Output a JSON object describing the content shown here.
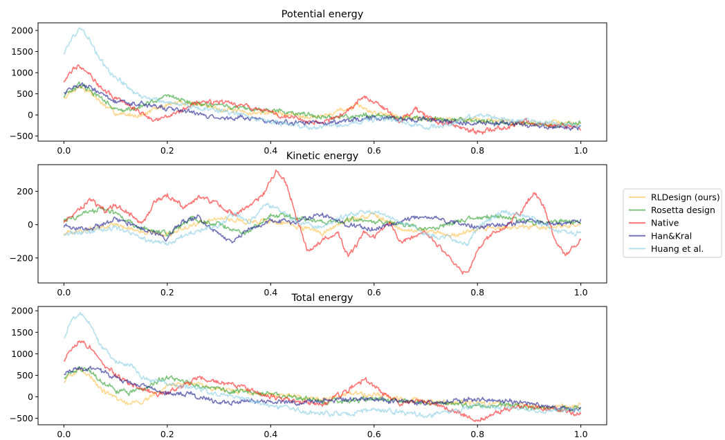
{
  "chart_data": [
    {
      "type": "line",
      "title": "Potential energy",
      "xlabel": "",
      "ylabel": "",
      "xlim": [
        -0.05,
        1.05
      ],
      "ylim": [
        -620,
        2180
      ],
      "xticks": [
        0.0,
        0.2,
        0.4,
        0.6,
        0.8,
        1.0
      ],
      "xtick_labels": [
        "0.0",
        "0.2",
        "0.4",
        "0.6",
        "0.8",
        "1.0"
      ],
      "yticks": [
        -500,
        0,
        500,
        1000,
        1500,
        2000
      ],
      "ytick_labels": [
        "−500",
        "0",
        "500",
        "1000",
        "1500",
        "2000"
      ],
      "grid": false,
      "series": [
        {
          "name": "RLDesign (ours)",
          "color": "#ffc04a",
          "x": [
            0,
            0.02,
            0.03,
            0.05,
            0.08,
            0.1,
            0.12,
            0.15,
            0.18,
            0.2,
            0.23,
            0.26,
            0.3,
            0.35,
            0.4,
            0.45,
            0.5,
            0.53,
            0.55,
            0.57,
            0.6,
            0.65,
            0.7,
            0.75,
            0.8,
            0.85,
            0.9,
            0.95,
            1.0
          ],
          "y": [
            400,
            600,
            680,
            550,
            200,
            50,
            0,
            0,
            150,
            250,
            300,
            250,
            150,
            50,
            50,
            0,
            -50,
            100,
            150,
            200,
            50,
            0,
            -100,
            -100,
            -100,
            -150,
            -200,
            -200,
            -200
          ]
        },
        {
          "name": "Rosetta design",
          "color": "#2ca02c",
          "x": [
            0,
            0.02,
            0.03,
            0.05,
            0.08,
            0.1,
            0.12,
            0.15,
            0.18,
            0.2,
            0.23,
            0.26,
            0.3,
            0.35,
            0.4,
            0.45,
            0.5,
            0.55,
            0.6,
            0.65,
            0.7,
            0.75,
            0.8,
            0.85,
            0.9,
            0.95,
            1.0
          ],
          "y": [
            450,
            600,
            700,
            600,
            300,
            150,
            100,
            200,
            350,
            480,
            350,
            250,
            200,
            150,
            100,
            50,
            -50,
            -50,
            0,
            -50,
            -100,
            -100,
            -150,
            -200,
            -200,
            -250,
            -200
          ]
        },
        {
          "name": "Native",
          "color": "#ff2020",
          "x": [
            0,
            0.02,
            0.03,
            0.05,
            0.07,
            0.1,
            0.13,
            0.15,
            0.17,
            0.2,
            0.23,
            0.26,
            0.3,
            0.35,
            0.4,
            0.45,
            0.5,
            0.55,
            0.58,
            0.6,
            0.63,
            0.65,
            0.68,
            0.7,
            0.73,
            0.75,
            0.8,
            0.85,
            0.9,
            0.95,
            1.0
          ],
          "y": [
            800,
            1100,
            1200,
            1000,
            650,
            400,
            200,
            50,
            -100,
            0,
            100,
            300,
            300,
            200,
            50,
            -100,
            -200,
            100,
            450,
            300,
            50,
            -150,
            150,
            -50,
            -200,
            -200,
            -400,
            -300,
            -150,
            -250,
            -300
          ]
        },
        {
          "name": "Han&Kral",
          "color": "#1f1f8f",
          "x": [
            0,
            0.02,
            0.03,
            0.05,
            0.08,
            0.1,
            0.13,
            0.15,
            0.2,
            0.25,
            0.3,
            0.35,
            0.4,
            0.45,
            0.5,
            0.55,
            0.6,
            0.65,
            0.7,
            0.75,
            0.8,
            0.85,
            0.9,
            0.95,
            1.0
          ],
          "y": [
            550,
            680,
            700,
            650,
            450,
            300,
            250,
            250,
            150,
            50,
            -100,
            -50,
            -150,
            -200,
            -200,
            -150,
            -50,
            -100,
            -100,
            -150,
            -200,
            -200,
            -250,
            -300,
            -300
          ]
        },
        {
          "name": "Huang et al.",
          "color": "#87cde4",
          "x": [
            0,
            0.01,
            0.02,
            0.03,
            0.05,
            0.07,
            0.1,
            0.13,
            0.15,
            0.2,
            0.25,
            0.3,
            0.35,
            0.4,
            0.45,
            0.5,
            0.55,
            0.6,
            0.65,
            0.7,
            0.75,
            0.8,
            0.85,
            0.9,
            0.95,
            1.0
          ],
          "y": [
            1450,
            1700,
            1900,
            2050,
            1800,
            1300,
            900,
            600,
            450,
            300,
            200,
            100,
            0,
            -150,
            -250,
            -300,
            -200,
            -100,
            -150,
            -300,
            -200,
            0,
            -100,
            -150,
            -200,
            -250
          ]
        }
      ]
    },
    {
      "type": "line",
      "title": "Kinetic energy",
      "xlabel": "",
      "ylabel": "",
      "xlim": [
        -0.05,
        1.05
      ],
      "ylim": [
        -350,
        360
      ],
      "xticks": [
        0.0,
        0.2,
        0.4,
        0.6,
        0.8,
        1.0
      ],
      "xtick_labels": [
        "0.0",
        "0.2",
        "0.4",
        "0.6",
        "0.8",
        "1.0"
      ],
      "yticks": [
        -200,
        0,
        200
      ],
      "ytick_labels": [
        "−200",
        "0",
        "200"
      ],
      "grid": false,
      "series": [
        {
          "name": "RLDesign (ours)",
          "color": "#ffc04a",
          "x": [
            0,
            0.05,
            0.1,
            0.15,
            0.2,
            0.25,
            0.3,
            0.35,
            0.4,
            0.45,
            0.5,
            0.55,
            0.6,
            0.65,
            0.7,
            0.75,
            0.8,
            0.85,
            0.9,
            0.95,
            1.0
          ],
          "y": [
            -50,
            -30,
            0,
            -40,
            -60,
            0,
            40,
            20,
            20,
            -10,
            -50,
            30,
            60,
            -20,
            -40,
            -70,
            -30,
            -20,
            -10,
            -10,
            0
          ]
        },
        {
          "name": "Rosetta design",
          "color": "#2ca02c",
          "x": [
            0,
            0.05,
            0.08,
            0.1,
            0.15,
            0.2,
            0.25,
            0.3,
            0.35,
            0.4,
            0.45,
            0.5,
            0.55,
            0.6,
            0.65,
            0.7,
            0.75,
            0.8,
            0.85,
            0.9,
            0.95,
            1.0
          ],
          "y": [
            20,
            80,
            100,
            60,
            -20,
            -60,
            40,
            0,
            -60,
            60,
            40,
            20,
            30,
            20,
            10,
            -30,
            10,
            40,
            50,
            10,
            20,
            10
          ]
        },
        {
          "name": "Native",
          "color": "#ff2020",
          "x": [
            0,
            0.02,
            0.05,
            0.08,
            0.1,
            0.13,
            0.15,
            0.18,
            0.2,
            0.23,
            0.26,
            0.3,
            0.33,
            0.36,
            0.39,
            0.41,
            0.43,
            0.45,
            0.47,
            0.5,
            0.53,
            0.55,
            0.58,
            0.6,
            0.63,
            0.65,
            0.7,
            0.73,
            0.76,
            0.78,
            0.8,
            0.83,
            0.86,
            0.89,
            0.91,
            0.93,
            0.95,
            0.97,
            1.0
          ],
          "y": [
            20,
            60,
            150,
            80,
            120,
            60,
            0,
            150,
            180,
            100,
            170,
            120,
            60,
            120,
            200,
            330,
            250,
            50,
            -150,
            -100,
            -50,
            -200,
            -50,
            -80,
            20,
            -100,
            -50,
            -150,
            -250,
            -300,
            -150,
            -50,
            0,
            100,
            200,
            100,
            -100,
            -180,
            -100
          ]
        },
        {
          "name": "Han&Kral",
          "color": "#1f1f8f",
          "x": [
            0,
            0.05,
            0.1,
            0.15,
            0.2,
            0.23,
            0.26,
            0.3,
            0.33,
            0.36,
            0.4,
            0.45,
            0.5,
            0.55,
            0.6,
            0.65,
            0.7,
            0.75,
            0.8,
            0.85,
            0.9,
            0.95,
            1.0
          ],
          "y": [
            -10,
            -30,
            40,
            -20,
            -80,
            20,
            40,
            -60,
            -100,
            -20,
            20,
            20,
            60,
            0,
            -30,
            20,
            60,
            10,
            -10,
            0,
            30,
            0,
            20
          ]
        },
        {
          "name": "Huang et al.",
          "color": "#87cde4",
          "x": [
            0,
            0.05,
            0.1,
            0.15,
            0.2,
            0.25,
            0.3,
            0.33,
            0.36,
            0.39,
            0.42,
            0.45,
            0.5,
            0.55,
            0.6,
            0.65,
            0.7,
            0.75,
            0.78,
            0.8,
            0.85,
            0.9,
            0.95,
            1.0
          ],
          "y": [
            -60,
            -40,
            -20,
            -80,
            -120,
            -40,
            0,
            60,
            20,
            120,
            80,
            20,
            -20,
            60,
            80,
            20,
            -60,
            -80,
            -120,
            -20,
            80,
            50,
            -40,
            -50
          ]
        }
      ]
    },
    {
      "type": "line",
      "title": "Total energy",
      "xlabel": "",
      "ylabel": "",
      "xlim": [
        -0.05,
        1.05
      ],
      "ylim": [
        -650,
        2100
      ],
      "xticks": [
        0.0,
        0.2,
        0.4,
        0.6,
        0.8,
        1.0
      ],
      "xtick_labels": [
        "0.0",
        "0.2",
        "0.4",
        "0.6",
        "0.8",
        "1.0"
      ],
      "yticks": [
        -500,
        0,
        500,
        1000,
        1500,
        2000
      ],
      "ytick_labels": [
        "−500",
        "0",
        "500",
        "1000",
        "1500",
        "2000"
      ],
      "grid": false,
      "series": [
        {
          "name": "RLDesign (ours)",
          "color": "#ffc04a",
          "x": [
            0,
            0.02,
            0.03,
            0.05,
            0.08,
            0.1,
            0.12,
            0.15,
            0.18,
            0.2,
            0.23,
            0.26,
            0.3,
            0.35,
            0.4,
            0.45,
            0.5,
            0.55,
            0.6,
            0.65,
            0.7,
            0.75,
            0.8,
            0.85,
            0.9,
            0.95,
            1.0
          ],
          "y": [
            350,
            550,
            650,
            500,
            100,
            -50,
            -150,
            -100,
            100,
            250,
            300,
            250,
            200,
            100,
            50,
            0,
            -50,
            50,
            50,
            -50,
            -100,
            -150,
            -150,
            -200,
            -200,
            -250,
            -200
          ]
        },
        {
          "name": "Rosetta design",
          "color": "#2ca02c",
          "x": [
            0,
            0.02,
            0.03,
            0.05,
            0.08,
            0.1,
            0.12,
            0.15,
            0.18,
            0.2,
            0.23,
            0.26,
            0.3,
            0.35,
            0.4,
            0.45,
            0.5,
            0.55,
            0.6,
            0.65,
            0.7,
            0.75,
            0.8,
            0.85,
            0.9,
            0.95,
            1.0
          ],
          "y": [
            450,
            600,
            680,
            600,
            300,
            150,
            100,
            150,
            350,
            450,
            350,
            250,
            150,
            100,
            50,
            0,
            -100,
            -100,
            -50,
            -100,
            -150,
            -150,
            -200,
            -200,
            -250,
            -300,
            -250
          ]
        },
        {
          "name": "Native",
          "color": "#ff2020",
          "x": [
            0,
            0.02,
            0.03,
            0.05,
            0.07,
            0.1,
            0.13,
            0.15,
            0.18,
            0.2,
            0.23,
            0.26,
            0.3,
            0.35,
            0.4,
            0.45,
            0.5,
            0.55,
            0.58,
            0.6,
            0.63,
            0.65,
            0.7,
            0.75,
            0.78,
            0.8,
            0.85,
            0.9,
            0.95,
            1.0
          ],
          "y": [
            850,
            1200,
            1300,
            1150,
            800,
            500,
            300,
            200,
            50,
            100,
            250,
            450,
            350,
            200,
            0,
            -100,
            -200,
            150,
            400,
            250,
            0,
            -150,
            -100,
            -300,
            -450,
            -550,
            -300,
            -200,
            -300,
            -400
          ]
        },
        {
          "name": "Han&Kral",
          "color": "#1f1f8f",
          "x": [
            0,
            0.02,
            0.03,
            0.05,
            0.08,
            0.1,
            0.13,
            0.15,
            0.2,
            0.25,
            0.3,
            0.35,
            0.4,
            0.45,
            0.5,
            0.55,
            0.6,
            0.65,
            0.7,
            0.75,
            0.8,
            0.85,
            0.9,
            0.95,
            1.0
          ],
          "y": [
            550,
            650,
            680,
            650,
            550,
            450,
            300,
            250,
            100,
            50,
            -150,
            -100,
            -100,
            -150,
            -100,
            -50,
            -50,
            -100,
            -150,
            -100,
            -50,
            -100,
            -150,
            -250,
            -300
          ]
        },
        {
          "name": "Huang et al.",
          "color": "#87cde4",
          "x": [
            0,
            0.01,
            0.02,
            0.03,
            0.05,
            0.07,
            0.1,
            0.13,
            0.15,
            0.2,
            0.25,
            0.3,
            0.35,
            0.4,
            0.45,
            0.5,
            0.55,
            0.6,
            0.65,
            0.7,
            0.75,
            0.8,
            0.85,
            0.9,
            0.95,
            1.0
          ],
          "y": [
            1400,
            1650,
            1850,
            1950,
            1700,
            1200,
            850,
            750,
            450,
            300,
            200,
            50,
            -50,
            -200,
            -300,
            -400,
            -400,
            -300,
            -350,
            -450,
            -350,
            -200,
            -250,
            -300,
            -350,
            -300
          ]
        }
      ]
    }
  ],
  "legend": {
    "placement": "right",
    "entries": [
      {
        "label": "RLDesign (ours)",
        "color": "#ffc04a"
      },
      {
        "label": "Rosetta design",
        "color": "#2ca02c"
      },
      {
        "label": "Native",
        "color": "#ff2020"
      },
      {
        "label": "Han&Kral",
        "color": "#1f1f8f"
      },
      {
        "label": "Huang et al.",
        "color": "#87cde4"
      }
    ]
  }
}
